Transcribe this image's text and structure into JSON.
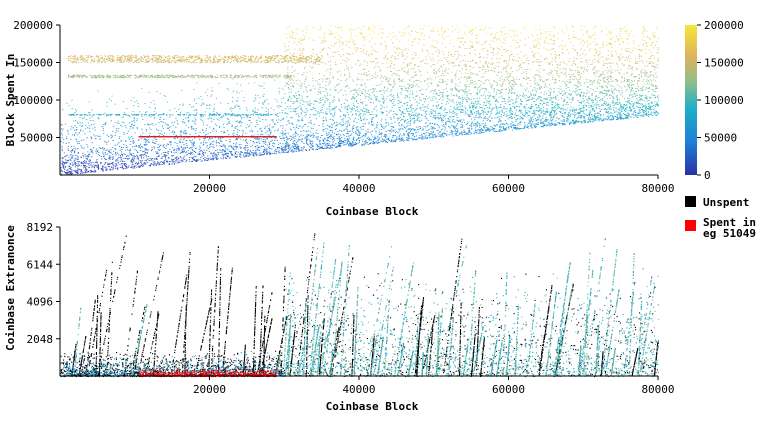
{
  "chart_data": [
    {
      "type": "scatter",
      "xlabel": "Coinbase Block",
      "ylabel": "Block Spent In",
      "xlim": [
        0,
        80000
      ],
      "ylim": [
        0,
        200000
      ],
      "x_ticks": [
        20000,
        40000,
        60000,
        80000
      ],
      "y_ticks": [
        50000,
        100000,
        150000,
        200000
      ],
      "colorbar": {
        "ticks": [
          0,
          50000,
          100000,
          150000,
          200000
        ],
        "colors": [
          "#2b30a8",
          "#1e7fd6",
          "#1fb0c8",
          "#8fbe8a",
          "#e0b45a",
          "#f6e63a"
        ]
      },
      "features": [
        {
          "kind": "diagonal_band",
          "from": [
            0,
            0
          ],
          "to": [
            80000,
            80000
          ]
        },
        {
          "kind": "horizontal_band",
          "x": [
            1000,
            35000
          ],
          "y": 155000
        },
        {
          "kind": "horizontal_band",
          "x": [
            1000,
            30000
          ],
          "y": 132000
        },
        {
          "kind": "highlight_line",
          "x": [
            10500,
            29000
          ],
          "y": 51049
        }
      ]
    },
    {
      "type": "scatter",
      "xlabel": "Coinbase Block",
      "ylabel": "Coinbase Extranonce",
      "xlim": [
        0,
        80000
      ],
      "ylim": [
        0,
        8192
      ],
      "x_ticks": [
        20000,
        40000,
        60000,
        80000
      ],
      "y_ticks": [
        2048,
        4096,
        6144,
        8192
      ],
      "legend": [
        {
          "label": "Unspent",
          "color": "#000000"
        },
        {
          "label": "Spent in\neg 51049",
          "color": "#ff0000"
        }
      ],
      "highlight_x_range": [
        10500,
        29000
      ]
    }
  ]
}
